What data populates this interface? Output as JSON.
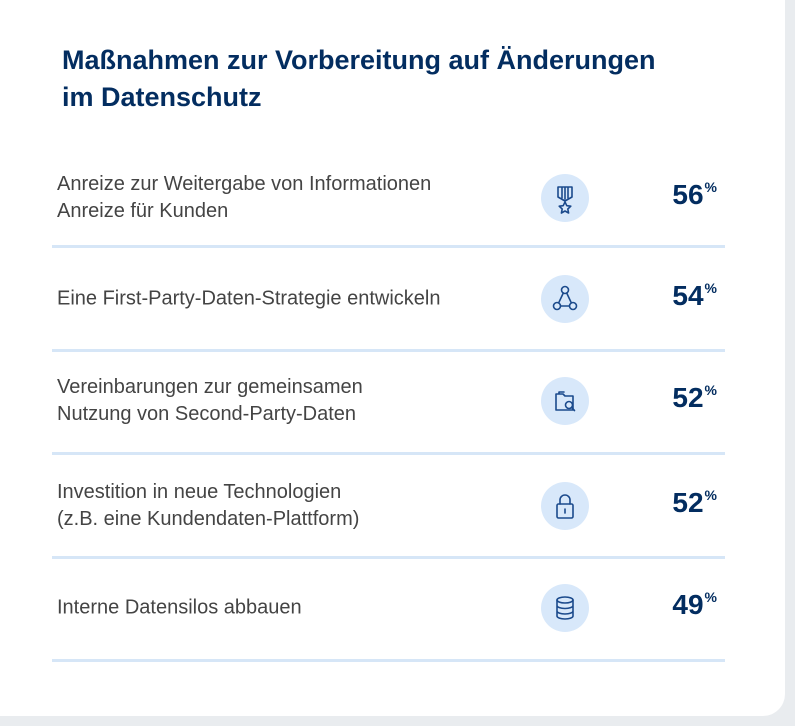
{
  "title": [
    "Maßnahmen zur Vorbereitung auf Änderungen",
    "im Datenschutz"
  ],
  "unit": "%",
  "items": [
    {
      "label": [
        "Anreize zur Weitergabe von Informationen",
        "Anreize für Kunden"
      ],
      "value": 56
    },
    {
      "label": [
        "Eine First-Party-Daten-Strategie entwickeln"
      ],
      "value": 54
    },
    {
      "label": [
        "Vereinbarungen zur gemeinsamen",
        "Nutzung von Second-Party-Daten"
      ],
      "value": 52
    },
    {
      "label": [
        "Investition in neue Technologien",
        "(z.B. eine Kundendaten-Plattform)"
      ],
      "value": 52
    },
    {
      "label": [
        "Interne Datensilos abbauen"
      ],
      "value": 49
    }
  ]
}
